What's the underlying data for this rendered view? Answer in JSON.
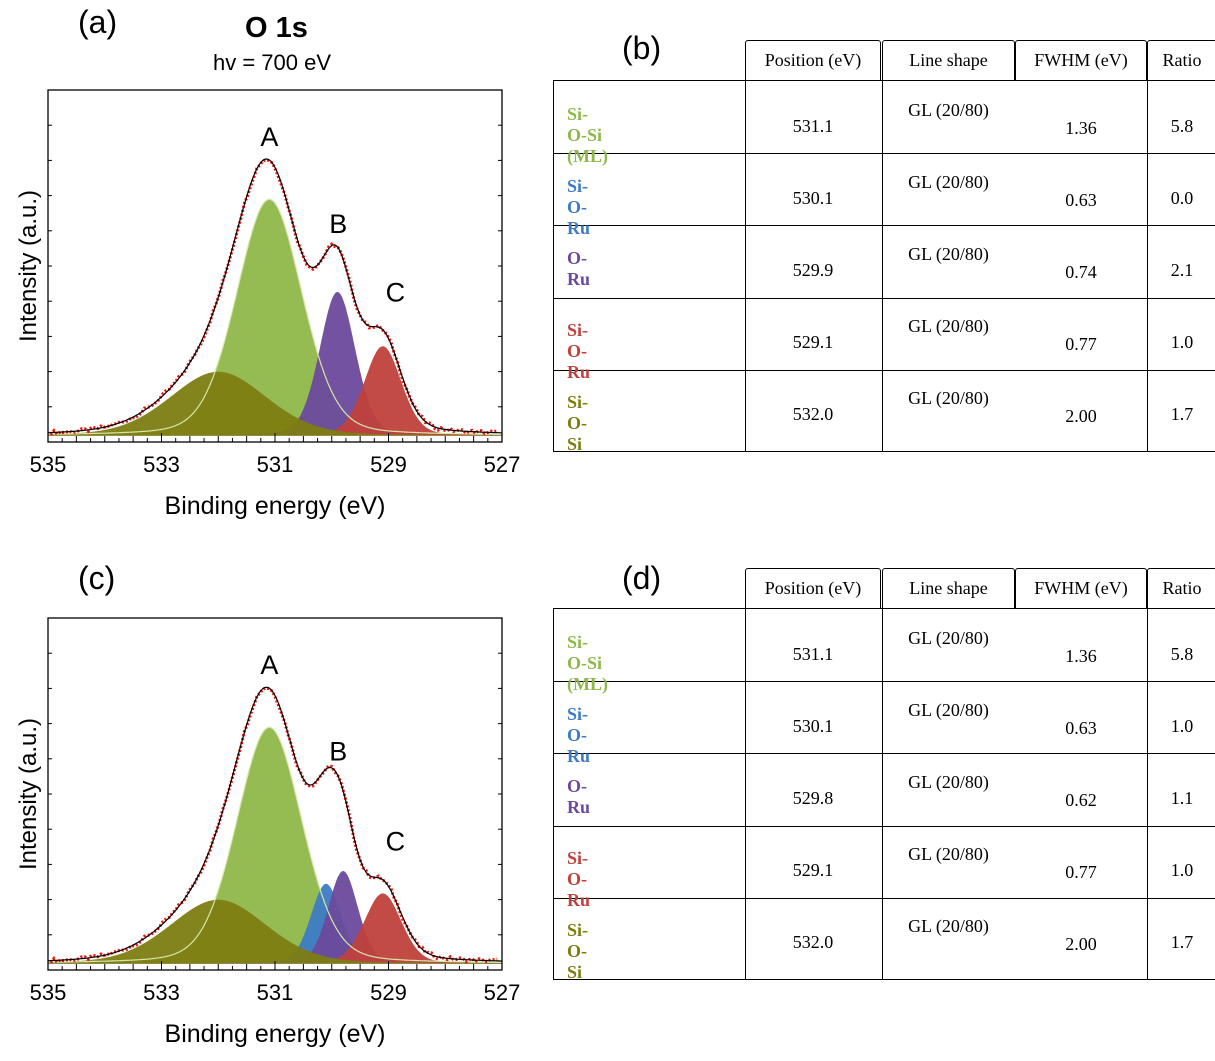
{
  "panels": {
    "a": "(a)",
    "b": "(b)",
    "c": "(c)",
    "d": "(d)"
  },
  "spectrum_title": "O 1s",
  "spectrum_subtitle": "hv = 700 eV",
  "colors": {
    "si_o_si_ml": "#8fb84a",
    "si_o_ru_blue": "#3d7bc4",
    "o_ru": "#6c4a9c",
    "si_o_ru_red": "#c0413c",
    "si_o_si": "#7d7d12",
    "envelope": "#000000",
    "data": "#e8160f"
  },
  "chart_data": [
    {
      "type": "area",
      "panel": "(a)",
      "xlabel": "Binding energy (eV)",
      "ylabel": "Intensity (a.u.)",
      "xlim": [
        535,
        527
      ],
      "xticks": [
        "535",
        "533",
        "531",
        "529",
        "527"
      ],
      "peak_labels": [
        "A",
        "B",
        "C"
      ],
      "components": [
        {
          "name": "Si-O-Si (ML)",
          "center": 531.1,
          "fwhm": 1.36,
          "height": 0.74
        },
        {
          "name": "O-Ru",
          "center": 529.9,
          "fwhm": 0.74,
          "height": 0.45
        },
        {
          "name": "Si-O-Ru",
          "center": 529.1,
          "fwhm": 0.77,
          "height": 0.28
        },
        {
          "name": "Si-O-Si",
          "center": 532.0,
          "fwhm": 2.0,
          "height": 0.2
        }
      ]
    },
    {
      "type": "area",
      "panel": "(c)",
      "xlabel": "Binding energy (eV)",
      "ylabel": "Intensity (a.u.)",
      "xlim": [
        535,
        527
      ],
      "xticks": [
        "535",
        "533",
        "531",
        "529",
        "527"
      ],
      "peak_labels": [
        "A",
        "B",
        "C"
      ],
      "components": [
        {
          "name": "Si-O-Si (ML)",
          "center": 531.1,
          "fwhm": 1.36,
          "height": 0.74
        },
        {
          "name": "Si-O-Ru",
          "center": 530.1,
          "fwhm": 0.63,
          "height": 0.25
        },
        {
          "name": "O-Ru",
          "center": 529.8,
          "fwhm": 0.62,
          "height": 0.29
        },
        {
          "name": "Si-O-Ru",
          "center": 529.1,
          "fwhm": 0.77,
          "height": 0.22
        },
        {
          "name": "Si-O-Si",
          "center": 532.0,
          "fwhm": 2.0,
          "height": 0.2
        }
      ]
    }
  ],
  "table_headers": [
    "Position (eV)",
    "Line shape",
    "FWHM (eV)",
    "Ratio"
  ],
  "table_b": {
    "rows": [
      {
        "component": "Si-O-Si (ML)",
        "position": "531.1",
        "line_shape": "GL (20/80)",
        "fwhm": "1.36",
        "ratio": "5.8"
      },
      {
        "component": "Si-O-Ru",
        "position": "530.1",
        "line_shape": "GL (20/80)",
        "fwhm": "0.63",
        "ratio": "0.0"
      },
      {
        "component": "O-Ru",
        "position": "529.9",
        "line_shape": "GL (20/80)",
        "fwhm": "0.74",
        "ratio": "2.1"
      },
      {
        "component": "Si-O-Ru",
        "position": "529.1",
        "line_shape": "GL (20/80)",
        "fwhm": "0.77",
        "ratio": "1.0"
      },
      {
        "component": "Si-O-Si",
        "position": "532.0",
        "line_shape": "GL (20/80)",
        "fwhm": "2.00",
        "ratio": "1.7"
      }
    ]
  },
  "table_d": {
    "rows": [
      {
        "component": "Si-O-Si (ML)",
        "position": "531.1",
        "line_shape": "GL (20/80)",
        "fwhm": "1.36",
        "ratio": "5.8"
      },
      {
        "component": "Si-O-Ru",
        "position": "530.1",
        "line_shape": "GL (20/80)",
        "fwhm": "0.63",
        "ratio": "1.0"
      },
      {
        "component": "O-Ru",
        "position": "529.8",
        "line_shape": "GL (20/80)",
        "fwhm": "0.62",
        "ratio": "1.1"
      },
      {
        "component": "Si-O-Ru",
        "position": "529.1",
        "line_shape": "GL (20/80)",
        "fwhm": "0.77",
        "ratio": "1.0"
      },
      {
        "component": "Si-O-Si",
        "position": "532.0",
        "line_shape": "GL (20/80)",
        "fwhm": "2.00",
        "ratio": "1.7"
      }
    ]
  }
}
